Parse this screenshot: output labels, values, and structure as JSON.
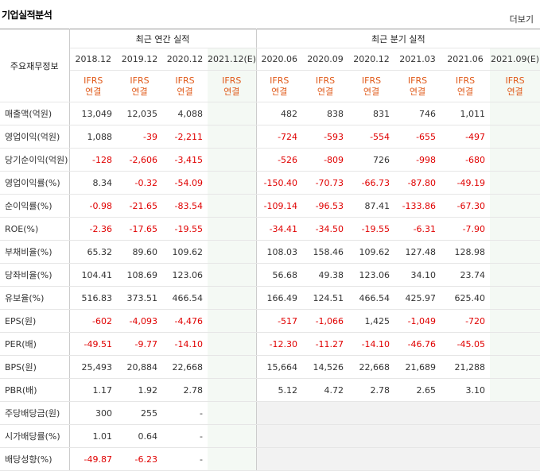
{
  "header": {
    "title": "기업실적분석",
    "more": "더보기"
  },
  "table": {
    "corner": "주요재무정보",
    "groups": [
      "최근 연간 실적",
      "최근 분기 실적"
    ],
    "periods": [
      "2018.12",
      "2019.12",
      "2020.12",
      "2021.12(E)",
      "2020.06",
      "2020.09",
      "2020.12",
      "2021.03",
      "2021.06",
      "2021.09(E)"
    ],
    "standards": [
      {
        "line1": "IFRS",
        "line2": "연결"
      },
      {
        "line1": "IFRS",
        "line2": "연결"
      },
      {
        "line1": "IFRS",
        "line2": "연결"
      },
      {
        "line1": "IFRS",
        "line2": "연결"
      },
      {
        "line1": "IFRS",
        "line2": "연결"
      },
      {
        "line1": "IFRS",
        "line2": "연결"
      },
      {
        "line1": "IFRS",
        "line2": "연결"
      },
      {
        "line1": "IFRS",
        "line2": "연결"
      },
      {
        "line1": "IFRS",
        "line2": "연결"
      },
      {
        "line1": "IFRS",
        "line2": "연결"
      }
    ],
    "rows": [
      {
        "label": "매출액(억원)",
        "values": [
          "13,049",
          "12,035",
          "4,088",
          null,
          "482",
          "838",
          "831",
          "746",
          "1,011",
          null
        ]
      },
      {
        "label": "영업이익(억원)",
        "values": [
          "1,088",
          "-39",
          "-2,211",
          null,
          "-724",
          "-593",
          "-554",
          "-655",
          "-497",
          null
        ]
      },
      {
        "label": "당기순이익(억원)",
        "values": [
          "-128",
          "-2,606",
          "-3,415",
          null,
          "-526",
          "-809",
          "726",
          "-998",
          "-680",
          null
        ]
      },
      {
        "label": "영업이익률(%)",
        "values": [
          "8.34",
          "-0.32",
          "-54.09",
          null,
          "-150.40",
          "-70.73",
          "-66.73",
          "-87.80",
          "-49.19",
          null
        ]
      },
      {
        "label": "순이익률(%)",
        "values": [
          "-0.98",
          "-21.65",
          "-83.54",
          null,
          "-109.14",
          "-96.53",
          "87.41",
          "-133.86",
          "-67.30",
          null
        ]
      },
      {
        "label": "ROE(%)",
        "values": [
          "-2.36",
          "-17.65",
          "-19.55",
          null,
          "-34.41",
          "-34.50",
          "-19.55",
          "-6.31",
          "-7.90",
          null
        ]
      },
      {
        "label": "부채비율(%)",
        "values": [
          "65.32",
          "89.60",
          "109.62",
          null,
          "108.03",
          "158.46",
          "109.62",
          "127.48",
          "128.98",
          null
        ]
      },
      {
        "label": "당좌비율(%)",
        "values": [
          "104.41",
          "108.69",
          "123.06",
          null,
          "56.68",
          "49.38",
          "123.06",
          "34.10",
          "23.74",
          null
        ]
      },
      {
        "label": "유보율(%)",
        "values": [
          "516.83",
          "373.51",
          "466.54",
          null,
          "166.49",
          "124.51",
          "466.54",
          "425.97",
          "625.40",
          null
        ]
      },
      {
        "label": "EPS(원)",
        "values": [
          "-602",
          "-4,093",
          "-4,476",
          null,
          "-517",
          "-1,066",
          "1,425",
          "-1,049",
          "-720",
          null
        ]
      },
      {
        "label": "PER(배)",
        "values": [
          "-49.51",
          "-9.77",
          "-14.10",
          null,
          "-12.30",
          "-11.27",
          "-14.10",
          "-46.76",
          "-45.05",
          null
        ]
      },
      {
        "label": "BPS(원)",
        "values": [
          "25,493",
          "20,884",
          "22,668",
          null,
          "15,664",
          "14,526",
          "22,668",
          "21,689",
          "21,288",
          null
        ]
      },
      {
        "label": "PBR(배)",
        "values": [
          "1.17",
          "1.92",
          "2.78",
          null,
          "5.12",
          "4.72",
          "2.78",
          "2.65",
          "3.10",
          null
        ]
      },
      {
        "label": "주당배당금(원)",
        "values": [
          "300",
          "255",
          "-",
          null,
          null,
          null,
          null,
          null,
          null,
          null
        ]
      },
      {
        "label": "시가배당률(%)",
        "values": [
          "1.01",
          "0.64",
          "-",
          null,
          null,
          null,
          null,
          null,
          null,
          null
        ]
      },
      {
        "label": "배당성향(%)",
        "values": [
          "-49.87",
          "-6.23",
          "-",
          null,
          null,
          null,
          null,
          null,
          null,
          null
        ]
      }
    ]
  }
}
